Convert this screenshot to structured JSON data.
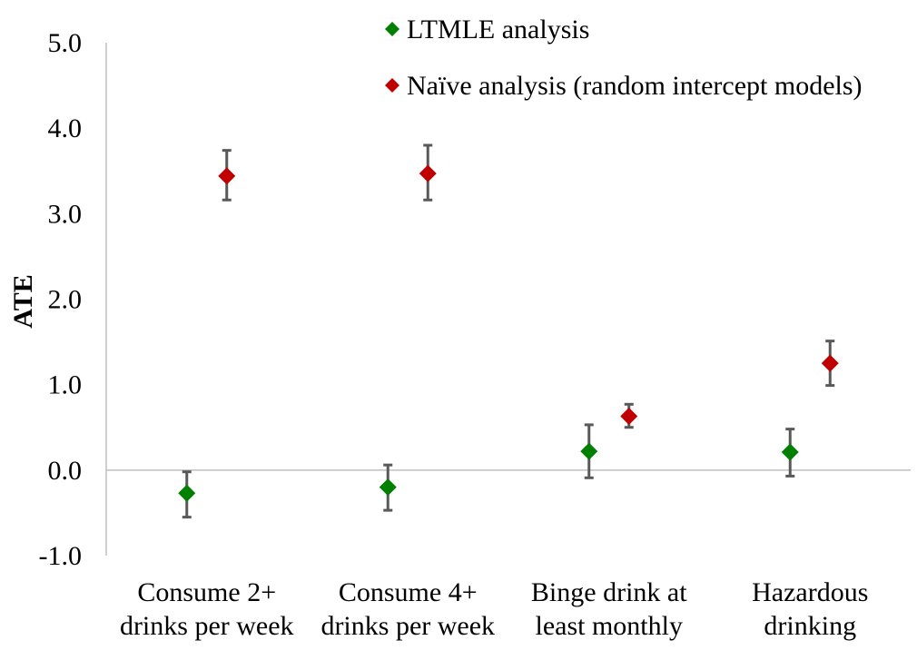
{
  "chart_data": {
    "type": "scatter",
    "title": "",
    "xlabel": "",
    "ylabel": "ATE",
    "ylim": [
      -1.0,
      5.0
    ],
    "yticks": [
      "5.0",
      "4.0",
      "3.0",
      "2.0",
      "1.0",
      "0.0",
      "-1.0"
    ],
    "ytick_values": [
      5.0,
      4.0,
      3.0,
      2.0,
      1.0,
      0.0,
      -1.0
    ],
    "grid": false,
    "legend_position": "top-right",
    "categories": [
      [
        "Consume 2+",
        "drinks per week"
      ],
      [
        "Consume 4+",
        "drinks per week"
      ],
      [
        "Binge drink at",
        "least monthly"
      ],
      [
        "Hazardous",
        "drinking"
      ]
    ],
    "series": [
      {
        "name": "LTMLE analysis",
        "color": "#008000",
        "marker": "diamond",
        "values": [
          -0.27,
          -0.2,
          0.22,
          0.21
        ],
        "lower": [
          -0.55,
          -0.47,
          -0.09,
          -0.07
        ],
        "upper": [
          -0.02,
          0.06,
          0.53,
          0.48
        ]
      },
      {
        "name": "Naïve analysis (random intercept models)",
        "color": "#c00000",
        "marker": "diamond",
        "values": [
          3.44,
          3.47,
          0.63,
          1.25
        ],
        "lower": [
          3.16,
          3.16,
          0.5,
          0.99
        ],
        "upper": [
          3.74,
          3.8,
          0.77,
          1.51
        ]
      }
    ]
  }
}
